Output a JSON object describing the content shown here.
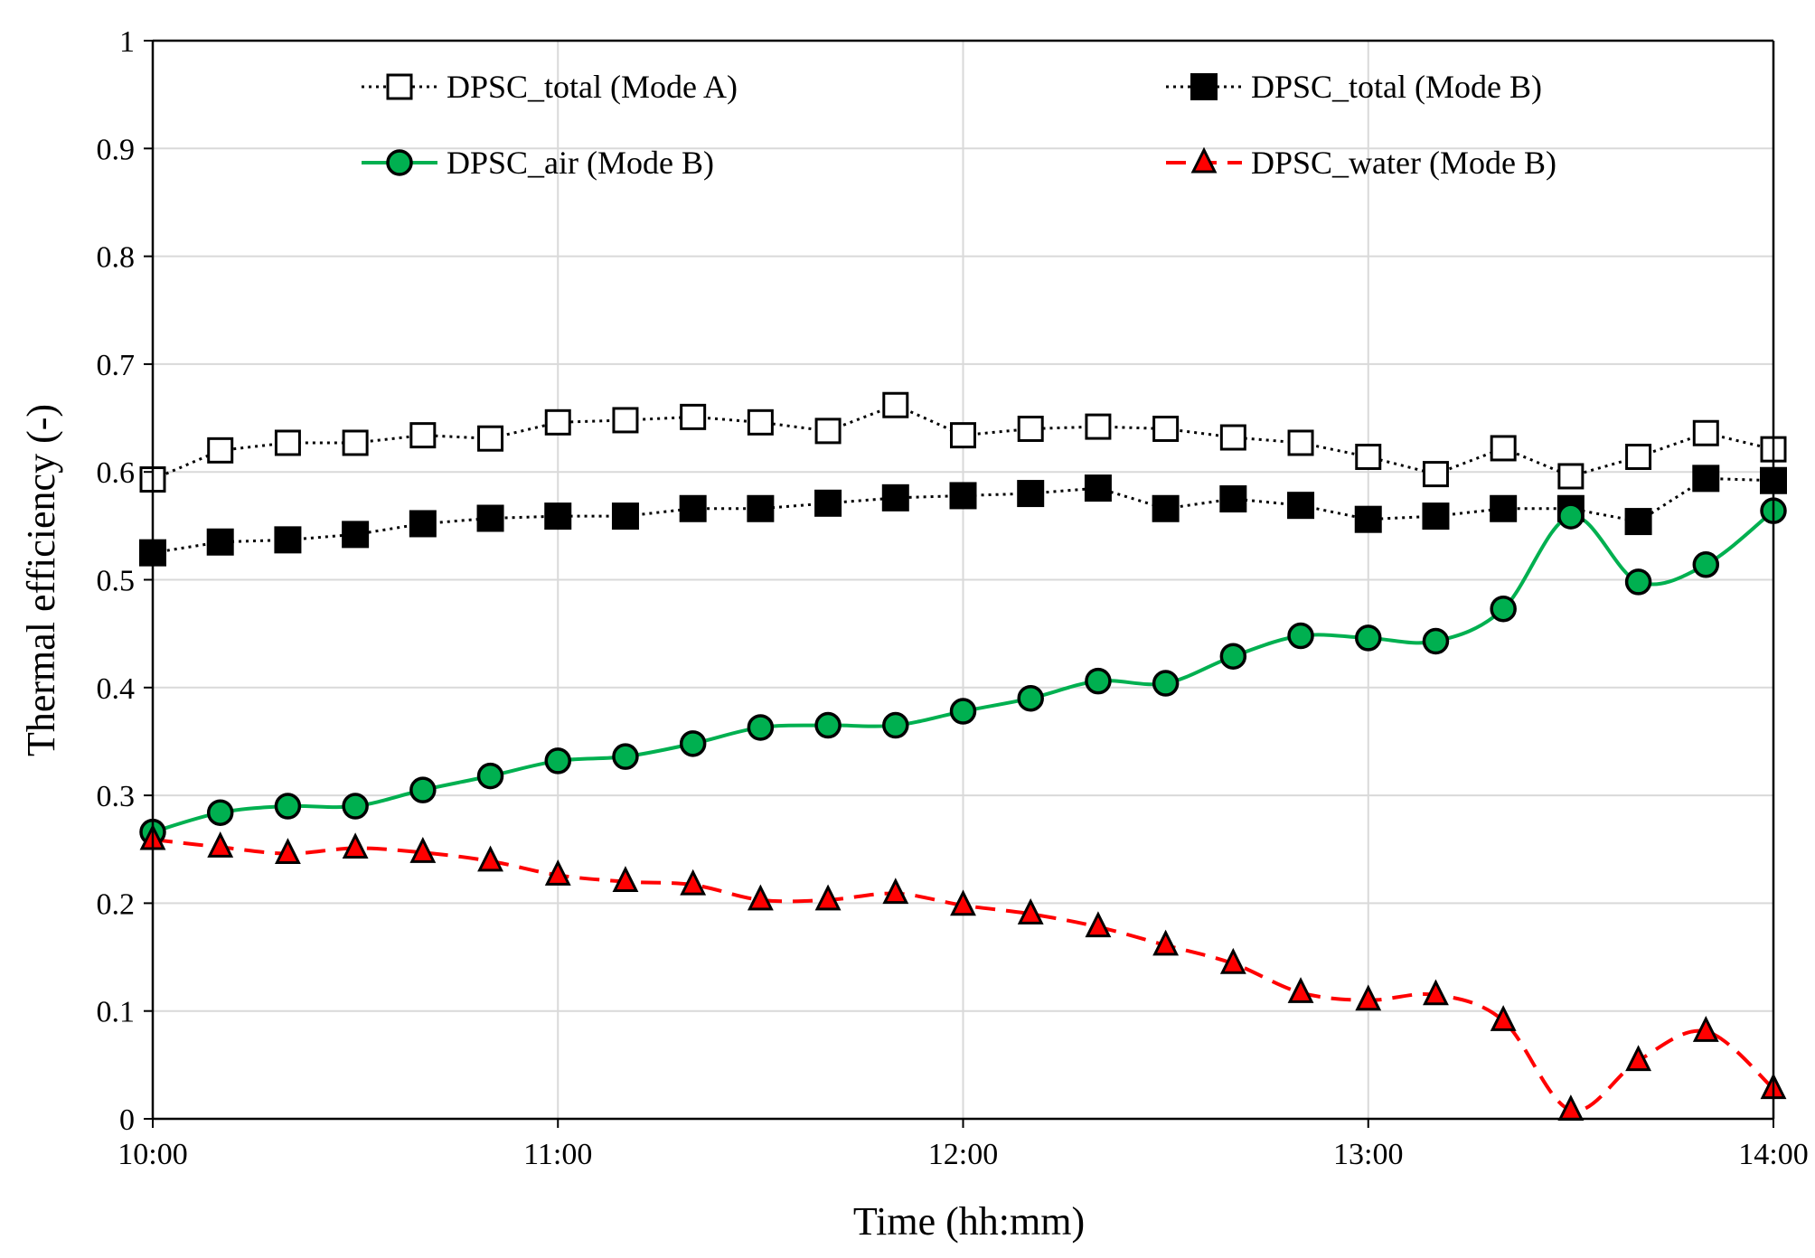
{
  "chart_data": {
    "type": "line",
    "xlabel": "Time (hh:mm)",
    "ylabel": "Thermal efficiency (-)",
    "xlim": [
      "10:00",
      "14:00"
    ],
    "ylim": [
      0,
      1
    ],
    "grid": true,
    "x_ticks": [
      "10:00",
      "11:00",
      "12:00",
      "13:00",
      "14:00"
    ],
    "y_ticks": [
      "0",
      "0.1",
      "0.2",
      "0.3",
      "0.4",
      "0.5",
      "0.6",
      "0.7",
      "0.8",
      "0.9",
      "1"
    ],
    "x": [
      "10:00",
      "10:10",
      "10:20",
      "10:30",
      "10:40",
      "10:50",
      "11:00",
      "11:10",
      "11:20",
      "11:30",
      "11:40",
      "11:50",
      "12:00",
      "12:10",
      "12:20",
      "12:30",
      "12:40",
      "12:50",
      "13:00",
      "13:10",
      "13:20",
      "13:30",
      "13:40",
      "13:50",
      "14:00"
    ],
    "series": [
      {
        "name": "DPSC_total (Mode A)",
        "line": "dotted",
        "color": "#000000",
        "marker": "open-square",
        "values": [
          0.593,
          0.62,
          0.627,
          0.627,
          0.634,
          0.631,
          0.646,
          0.648,
          0.651,
          0.646,
          0.638,
          0.662,
          0.634,
          0.64,
          0.642,
          0.64,
          0.632,
          0.627,
          0.614,
          0.598,
          0.622,
          0.596,
          0.614,
          0.636,
          0.621
        ]
      },
      {
        "name": "DPSC_total (Mode B)",
        "line": "dotted",
        "color": "#000000",
        "marker": "filled-square",
        "values": [
          0.525,
          0.535,
          0.537,
          0.542,
          0.552,
          0.557,
          0.559,
          0.559,
          0.566,
          0.566,
          0.571,
          0.576,
          0.578,
          0.58,
          0.585,
          0.566,
          0.575,
          0.569,
          0.556,
          0.559,
          0.566,
          0.566,
          0.554,
          0.594,
          0.592
        ]
      },
      {
        "name": "DPSC_air (Mode B)",
        "line": "solid",
        "color": "#00b050",
        "marker": "circle",
        "values": [
          0.266,
          0.284,
          0.29,
          0.29,
          0.305,
          0.318,
          0.332,
          0.336,
          0.348,
          0.363,
          0.365,
          0.365,
          0.378,
          0.39,
          0.406,
          0.404,
          0.429,
          0.448,
          0.446,
          0.443,
          0.473,
          0.559,
          0.498,
          0.514,
          0.564
        ]
      },
      {
        "name": "DPSC_water (Mode B)",
        "line": "dashed",
        "color": "#ff0000",
        "marker": "triangle",
        "values": [
          0.259,
          0.252,
          0.246,
          0.251,
          0.247,
          0.239,
          0.226,
          0.22,
          0.217,
          0.203,
          0.203,
          0.209,
          0.198,
          0.19,
          0.178,
          0.161,
          0.144,
          0.117,
          0.11,
          0.115,
          0.091,
          0.008,
          0.054,
          0.081,
          0.028
        ]
      }
    ],
    "legend_position": "top (inside plot, two columns)"
  }
}
